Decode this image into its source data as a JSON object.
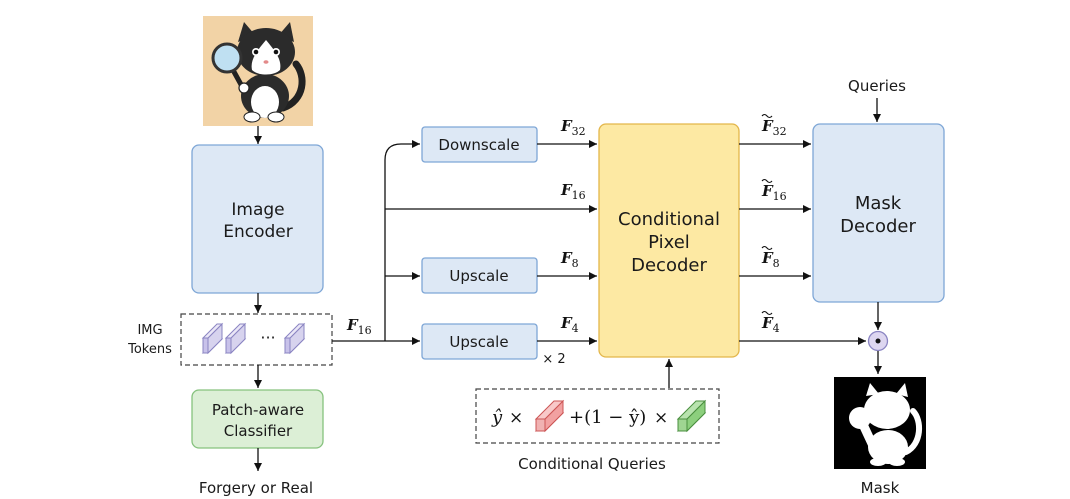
{
  "modules": {
    "image_encoder": [
      "Image",
      "Encoder"
    ],
    "img_tokens": [
      "IMG",
      "Tokens"
    ],
    "token_ellipsis": "···",
    "classifier": [
      "Patch-aware",
      "Classifier"
    ],
    "output_left": "Forgery or Real",
    "downscale": "Downscale",
    "upscale_a": "Upscale",
    "upscale_b": "Upscale",
    "pixel_decoder": [
      "Conditional",
      "Pixel",
      "Decoder"
    ],
    "mask_decoder": [
      "Mask",
      "Decoder"
    ],
    "queries": "Queries",
    "mask": "Mask",
    "conditional_queries": "Conditional Queries",
    "times_two": "× 2"
  },
  "features": {
    "F16_main": {
      "base": "F",
      "sub": "16"
    },
    "F32": {
      "base": "F",
      "sub": "32"
    },
    "F16": {
      "base": "F",
      "sub": "16"
    },
    "F8": {
      "base": "F",
      "sub": "8"
    },
    "F4": {
      "base": "F",
      "sub": "4"
    },
    "Ft32": {
      "base": "F",
      "sub": "32"
    },
    "Ft16": {
      "base": "F",
      "sub": "16"
    },
    "Ft8": {
      "base": "F",
      "sub": "8"
    },
    "Ft4": {
      "base": "F",
      "sub": "4"
    }
  },
  "formula": {
    "yhat": "ŷ",
    "times": "×",
    "plus_part": "+(1 − ŷ)"
  },
  "colors": {
    "blue_fill": "#dde8f5",
    "blue_stroke": "#7ea6d6",
    "yellow_fill": "#fde9a3",
    "yellow_stroke": "#e3b64a",
    "green_fill": "#dcefd6",
    "green_stroke": "#86c27e",
    "token_fill": "#d7d3ee",
    "token_stroke": "#8a84c2",
    "red_token": "#f2a1a1",
    "green_token": "#8ccf7d"
  },
  "icons": {
    "input_image": "cat-with-magnifier-icon",
    "mask_image": "cat-silhouette-mask-icon",
    "multiply_node": "elementwise-product-icon"
  }
}
